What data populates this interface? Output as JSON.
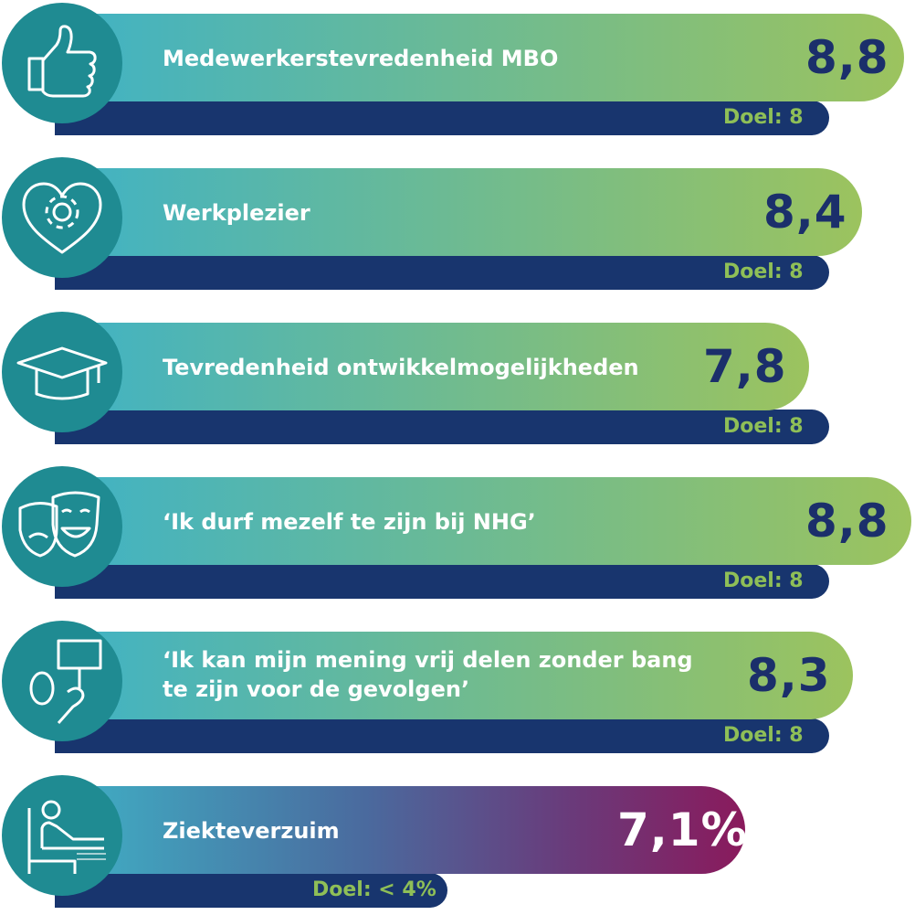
{
  "chart_data": {
    "type": "bar",
    "bars": [
      {
        "label": "Medewerkerstevredenheid MBO",
        "value_text": "8,8",
        "value": 8.8,
        "goal_text": "Doel: 8",
        "icon": "thumbs-up-icon"
      },
      {
        "label": "Werkplezier",
        "value_text": "8,4",
        "value": 8.4,
        "goal_text": "Doel: 8",
        "icon": "heart-gear-icon"
      },
      {
        "label": "Tevredenheid ontwikkelmogelijkheden",
        "value_text": "7,8",
        "value": 7.8,
        "goal_text": "Doel: 8",
        "icon": "graduation-cap-icon"
      },
      {
        "label": "‘Ik durf mezelf te zijn bij NHG’",
        "value_text": "8,8",
        "value": 8.8,
        "goal_text": "Doel: 8",
        "icon": "theater-masks-icon"
      },
      {
        "label": "‘Ik kan mijn mening vrij delen zonder bang te zijn voor de gevolgen’",
        "value_text": "8,3",
        "value": 8.3,
        "goal_text": "Doel: 8",
        "icon": "protest-sign-icon"
      },
      {
        "label": "Ziekteverzuim",
        "value_text": "7,1%",
        "value": 7.1,
        "goal_text": "Doel: < 4%",
        "icon": "sick-bed-icon"
      }
    ]
  },
  "colors": {
    "circle": "#1f8b92",
    "goal_bar": "#18356e",
    "goal_text": "#8fbf57",
    "value_text": "#1b2f6b",
    "gradient_green": [
      "#3fb2c6",
      "#9cc35e"
    ],
    "gradient_purple": [
      "#3fb2c6",
      "#8a1a5c"
    ]
  }
}
